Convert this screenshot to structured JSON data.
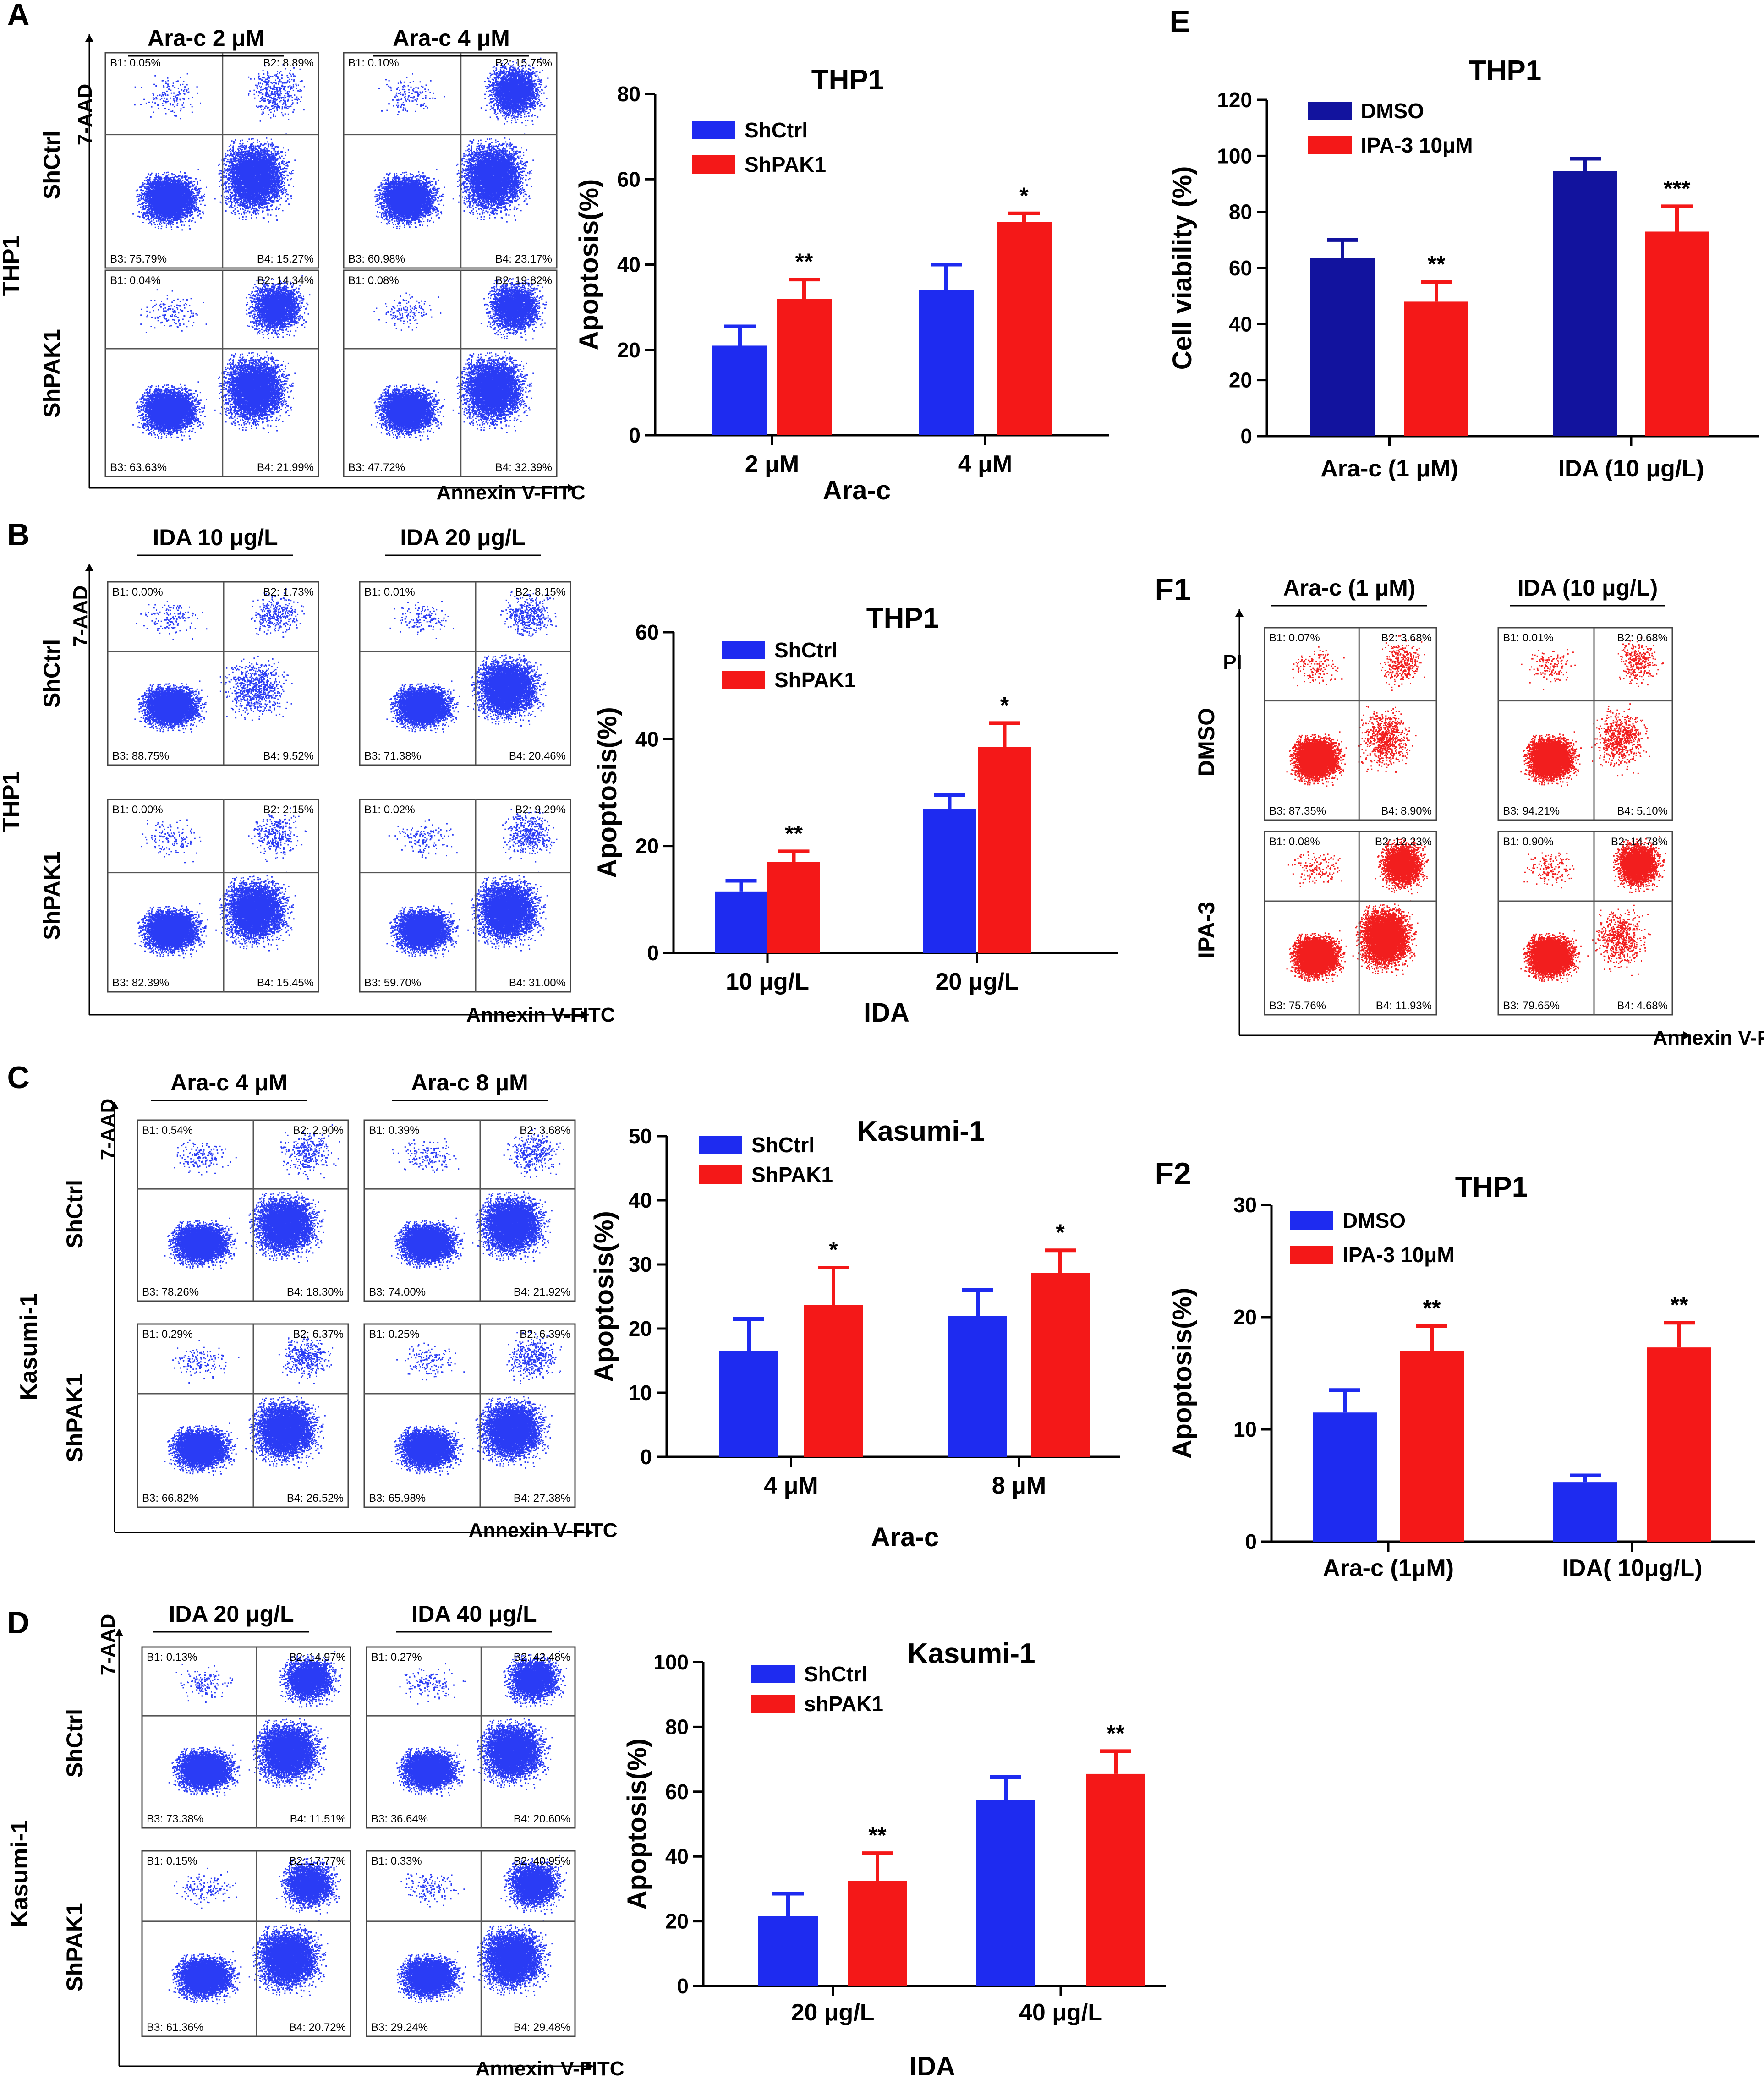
{
  "colors": {
    "shctrl_blue": "#1e2bf0",
    "shpak1_red": "#f41818",
    "dmso_navy": "#12139e",
    "dot_blue": "#2a3cf5",
    "dot_red": "#f21e1e",
    "axis": "#000000",
    "gate": "#555555"
  },
  "panels": [
    {
      "letter": "A",
      "flow": {
        "cell_line": "THP1",
        "rows": [
          "ShCtrl",
          "ShPAK1"
        ],
        "conditions": [
          "Ara-c  2 μM",
          "Ara-c  4 μM"
        ],
        "y_axis": "7-AAD",
        "x_axis": "Annexin V-FITC",
        "quadrants": [
          [
            [
              "B1: 0.05%",
              "B2: 8.89%",
              "B3: 75.79%",
              "B4: 15.27%"
            ],
            [
              "B1: 0.10%",
              "B2: 15.75%",
              "B3: 60.98%",
              "B4: 23.17%"
            ]
          ],
          [
            [
              "B1: 0.04%",
              "B2: 14.34%",
              "B3: 63.63%",
              "B4: 21.99%"
            ],
            [
              "B1: 0.08%",
              "B2: 19.82%",
              "B3: 47.72%",
              "B4: 32.39%"
            ]
          ]
        ]
      }
    },
    {
      "letter": "B",
      "flow": {
        "cell_line": "THP1",
        "rows": [
          "ShCtrl",
          "ShPAK1"
        ],
        "conditions": [
          "IDA 10 μg/L",
          "IDA  20 μg/L"
        ],
        "y_axis": "7-AAD",
        "x_axis": "Annexin V-FITC",
        "quadrants": [
          [
            [
              "B1: 0.00%",
              "B2: 1.73%",
              "B3: 88.75%",
              "B4: 9.52%"
            ],
            [
              "B1: 0.01%",
              "B2: 8.15%",
              "B3: 71.38%",
              "B4: 20.46%"
            ]
          ],
          [
            [
              "B1: 0.00%",
              "B2: 2.15%",
              "B3: 82.39%",
              "B4: 15.45%"
            ],
            [
              "B1: 0.02%",
              "B2: 9.29%",
              "B3: 59.70%",
              "B4: 31.00%"
            ]
          ]
        ]
      }
    },
    {
      "letter": "C",
      "flow": {
        "cell_line": "Kasumi-1",
        "rows": [
          "ShCtrl",
          "ShPAK1"
        ],
        "conditions": [
          "Ara-c  4 μM",
          "Ara-c 8 μM"
        ],
        "y_axis": "7-AAD",
        "x_axis": "Annexin V-FITC",
        "quadrants": [
          [
            [
              "B1: 0.54%",
              "B2: 2.90%",
              "B3: 78.26%",
              "B4: 18.30%"
            ],
            [
              "B1: 0.39%",
              "B2: 3.68%",
              "B3: 74.00%",
              "B4: 21.92%"
            ]
          ],
          [
            [
              "B1: 0.29%",
              "B2: 6.37%",
              "B3: 66.82%",
              "B4: 26.52%"
            ],
            [
              "B1: 0.25%",
              "B2: 6.39%",
              "B3: 65.98%",
              "B4: 27.38%"
            ]
          ]
        ]
      }
    },
    {
      "letter": "D",
      "flow": {
        "cell_line": "Kasumi-1",
        "rows": [
          "ShCtrl",
          "ShPAK1"
        ],
        "conditions": [
          "IDA  20 μg/L",
          "IDA  40  μg/L"
        ],
        "y_axis": "7-AAD",
        "x_axis": "Annexin V-FITC",
        "quadrants": [
          [
            [
              "B1: 0.13%",
              "B2: 14.97%",
              "B3: 73.38%",
              "B4: 11.51%"
            ],
            [
              "B1: 0.27%",
              "B2: 42.48%",
              "B3: 36.64%",
              "B4: 20.60%"
            ]
          ],
          [
            [
              "B1: 0.15%",
              "B2: 17.77%",
              "B3: 61.36%",
              "B4: 20.72%"
            ],
            [
              "B1: 0.33%",
              "B2: 40.95%",
              "B3: 29.24%",
              "B4: 29.48%"
            ]
          ]
        ]
      }
    },
    {
      "letter": "E"
    },
    {
      "letter": "F1",
      "flow": {
        "cell_line": "",
        "rows": [
          "DMSO",
          "IPA-3"
        ],
        "conditions": [
          "Ara-c (1 μM)",
          "IDA (10 μg/L)"
        ],
        "y_axis": "PI",
        "x_axis": "Annexin V-FITC",
        "quadrants": [
          [
            [
              "B1: 0.07%",
              "B2: 3.68%",
              "B3: 87.35%",
              "B4: 8.90%"
            ],
            [
              "B1: 0.01%",
              "B2: 0.68%",
              "B3: 94.21%",
              "B4: 5.10%"
            ]
          ],
          [
            [
              "B1: 0.08%",
              "B2: 12.23%",
              "B3: 75.76%",
              "B4: 11.93%"
            ],
            [
              "B1: 0.90%",
              "B2: 14.78%",
              "B3: 79.65%",
              "B4: 4.68%"
            ]
          ]
        ]
      }
    },
    {
      "letter": "F2"
    }
  ],
  "chart_data": [
    {
      "id": "A",
      "type": "bar",
      "title": "THP1",
      "xlabel": "Ara-c",
      "ylabel": "Apoptosis(%)",
      "ylim": [
        0,
        80
      ],
      "yticks": [
        "0",
        "20",
        "40",
        "60",
        "80"
      ],
      "categories": [
        "2 μM",
        "4 μM"
      ],
      "series": [
        {
          "name": "ShCtrl",
          "color": "#1e2bf0",
          "values": [
            21,
            34
          ],
          "errors": [
            4.5,
            6
          ]
        },
        {
          "name": "ShPAK1",
          "color": "#f41818",
          "values": [
            32,
            50
          ],
          "errors": [
            4.5,
            2
          ]
        }
      ],
      "significance": [
        {
          "series": 1,
          "category": 0,
          "label": "**"
        },
        {
          "series": 1,
          "category": 1,
          "label": "*"
        }
      ]
    },
    {
      "id": "B",
      "type": "bar",
      "title": "THP1",
      "xlabel": "IDA",
      "ylabel": "Apoptosis(%)",
      "ylim": [
        0,
        60
      ],
      "yticks": [
        "0",
        "20",
        "40",
        "60"
      ],
      "categories": [
        "10 μg/L",
        "20 μg/L"
      ],
      "series": [
        {
          "name": "ShCtrl",
          "color": "#1e2bf0",
          "values": [
            11.5,
            27
          ],
          "errors": [
            2,
            2.5
          ]
        },
        {
          "name": "ShPAK1",
          "color": "#f41818",
          "values": [
            17,
            38.5
          ],
          "errors": [
            2,
            4.5
          ]
        }
      ],
      "significance": [
        {
          "series": 1,
          "category": 0,
          "label": "**"
        },
        {
          "series": 1,
          "category": 1,
          "label": "*"
        }
      ]
    },
    {
      "id": "C",
      "type": "bar",
      "title": "Kasumi-1",
      "xlabel": "Ara-c",
      "ylabel": "Apoptosis(%)",
      "ylim": [
        0,
        50
      ],
      "yticks": [
        "0",
        "10",
        "20",
        "30",
        "40",
        "50"
      ],
      "categories": [
        "4 μM",
        "8 μM"
      ],
      "series": [
        {
          "name": "ShCtrl",
          "color": "#1e2bf0",
          "values": [
            16.5,
            22
          ],
          "errors": [
            5,
            4
          ]
        },
        {
          "name": "ShPAK1",
          "color": "#f41818",
          "values": [
            23.7,
            28.7
          ],
          "errors": [
            5.8,
            3.5
          ]
        }
      ],
      "significance": [
        {
          "series": 1,
          "category": 0,
          "label": "*"
        },
        {
          "series": 1,
          "category": 1,
          "label": "*"
        }
      ]
    },
    {
      "id": "D",
      "type": "bar",
      "title": "Kasumi-1",
      "xlabel": "IDA",
      "ylabel": "Apoptosis(%)",
      "ylim": [
        0,
        100
      ],
      "yticks": [
        "0",
        "20",
        "40",
        "60",
        "80",
        "100"
      ],
      "categories": [
        "20 μg/L",
        "40 μg/L"
      ],
      "series": [
        {
          "name": "ShCtrl",
          "color": "#1e2bf0",
          "values": [
            21.5,
            57.5
          ],
          "errors": [
            7,
            7
          ]
        },
        {
          "name": "shPAK1",
          "color": "#f41818",
          "values": [
            32.5,
            65.5
          ],
          "errors": [
            8.5,
            7
          ]
        }
      ],
      "significance": [
        {
          "series": 1,
          "category": 0,
          "label": "**"
        },
        {
          "series": 1,
          "category": 1,
          "label": "**"
        }
      ]
    },
    {
      "id": "E",
      "type": "bar",
      "title": "THP1",
      "xlabel": "",
      "ylabel": "Cell viability (%)",
      "ylim": [
        0,
        120
      ],
      "yticks": [
        "0",
        "20",
        "40",
        "60",
        "80",
        "100",
        "120"
      ],
      "categories": [
        "Ara-c (1 μM)",
        "IDA (10 μg/L)"
      ],
      "series": [
        {
          "name": "DMSO",
          "color": "#12139e",
          "values": [
            63.5,
            94.5
          ],
          "errors": [
            6.5,
            4.5
          ]
        },
        {
          "name": "IPA-3 10μM",
          "color": "#f41818",
          "values": [
            48,
            73
          ],
          "errors": [
            7,
            9
          ]
        }
      ],
      "significance": [
        {
          "series": 1,
          "category": 0,
          "label": "**"
        },
        {
          "series": 1,
          "category": 1,
          "label": "***"
        }
      ]
    },
    {
      "id": "F2",
      "type": "bar",
      "title": "THP1",
      "xlabel": "",
      "ylabel": "Apoptosis(%)",
      "ylim": [
        0,
        30
      ],
      "yticks": [
        "0",
        "10",
        "20",
        "30"
      ],
      "categories": [
        "Ara-c (1μM)",
        "IDA( 10μg/L)"
      ],
      "series": [
        {
          "name": "DMSO",
          "color": "#1e2bf0",
          "values": [
            11.5,
            5.3
          ],
          "errors": [
            2,
            0.6
          ]
        },
        {
          "name": "IPA-3 10μM",
          "color": "#f41818",
          "values": [
            17,
            17.3
          ],
          "errors": [
            2.2,
            2.2
          ]
        }
      ],
      "significance": [
        {
          "series": 1,
          "category": 0,
          "label": "**"
        },
        {
          "series": 1,
          "category": 1,
          "label": "**"
        }
      ]
    }
  ]
}
